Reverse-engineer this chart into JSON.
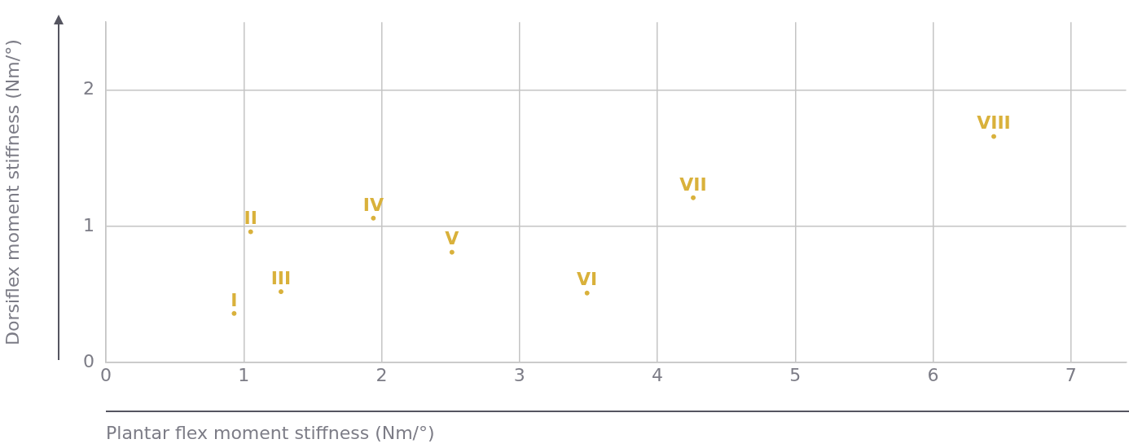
{
  "chart_data": {
    "type": "scatter",
    "xlabel": "Plantar flex moment stiffness (Nm/°)",
    "ylabel": "Dorsiflex moment stiffness (Nm/°)",
    "xlim": [
      0,
      7.4
    ],
    "ylim": [
      0,
      2.5
    ],
    "xticks": [
      0,
      1,
      2,
      3,
      4,
      5,
      6,
      7
    ],
    "yticks": [
      0,
      1,
      2
    ],
    "grid": true,
    "legend": false,
    "series": [
      {
        "color": "#d9b13b",
        "x": [
          0.93,
          1.05,
          1.27,
          1.94,
          2.51,
          3.49,
          4.26,
          6.44
        ],
        "values": [
          0.36,
          0.96,
          0.52,
          1.06,
          0.81,
          0.51,
          1.21,
          1.66
        ],
        "value_labels": [
          "I",
          "II",
          "III",
          "IV",
          "V",
          "VI",
          "VII",
          "VIII"
        ]
      }
    ]
  }
}
